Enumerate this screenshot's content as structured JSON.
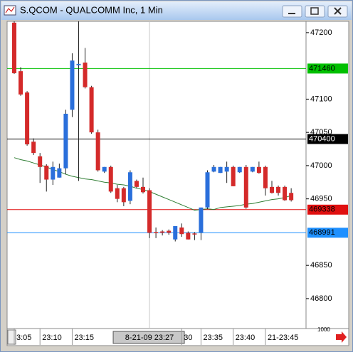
{
  "window": {
    "title": "S.QCOM - QUALCOMM Inc, 1 Min",
    "scale_label": "1000"
  },
  "chart_data": {
    "type": "candlestick",
    "categories": [
      "3:05",
      null,
      null,
      null,
      "23:10",
      null,
      null,
      null,
      null,
      "23:15",
      null,
      null,
      null,
      null,
      null,
      null,
      null,
      null,
      null,
      null,
      null,
      "8-21-09  23:27",
      null,
      null,
      null,
      null,
      "30",
      null,
      null,
      "23:35",
      null,
      null,
      null,
      null,
      "23:40",
      null,
      null,
      null,
      null,
      "21-23:45",
      null,
      null,
      null,
      null
    ],
    "open": [
      47215,
      47142,
      47110,
      47036,
      47014,
      47000,
      46979,
      46982,
      46996,
      47084,
      47151,
      47155,
      47118,
      47050,
      46991,
      46998,
      46966,
      46966,
      46947,
      46977,
      46968,
      46963,
      46900,
      46901,
      46902,
      46889,
      46907,
      46899,
      46898,
      46899,
      46937,
      46991,
      46989,
      46991,
      46998,
      46990,
      46998,
      46991,
      46998,
      46998,
      46968,
      46968,
      46968,
      46959
    ],
    "high": [
      47217,
      47148,
      47112,
      47041,
      47019,
      47002,
      47006,
      47003,
      47084,
      47169,
      47217,
      47177,
      47120,
      47054,
      46998,
      47000,
      46971,
      46968,
      46993,
      46979,
      46982,
      46966,
      46907,
      46903,
      46904,
      46909,
      46913,
      46901,
      46900,
      46937,
      46993,
      47001,
      46998,
      47006,
      47000,
      46998,
      47001,
      46998,
      47006,
      47000,
      46977,
      46970,
      46970,
      46966
    ],
    "low": [
      47138,
      47105,
      47030,
      47016,
      46974,
      46961,
      46971,
      46982,
      46987,
      47073,
      46977,
      47116,
      47048,
      46991,
      46989,
      46959,
      46945,
      46939,
      46942,
      46966,
      46958,
      46891,
      46891,
      46895,
      46896,
      46886,
      46893,
      46889,
      46888,
      46888,
      46935,
      46990,
      46989,
      46974,
      46969,
      46989,
      46935,
      46990,
      46988,
      46955,
      46958,
      46955,
      46947,
      46946
    ],
    "close": [
      47139,
      47107,
      47032,
      47019,
      46998,
      46979,
      46998,
      46996,
      47078,
      47158,
      47153,
      47118,
      47050,
      46993,
      46998,
      46961,
      46950,
      46945,
      46990,
      46968,
      46960,
      46899,
      46899,
      46899,
      46899,
      46909,
      46897,
      46889,
      46897,
      46937,
      46990,
      46998,
      46998,
      46998,
      46969,
      46998,
      46937,
      46998,
      46989,
      46966,
      46959,
      46959,
      46948,
      46948
    ],
    "up_color": "#2a6fdb",
    "down_color": "#d42a2a",
    "ma": {
      "color": "#2e7d32",
      "values": [
        47012,
        47009,
        47007,
        47004,
        47001,
        46998,
        46994,
        46991,
        46987,
        46984,
        46982,
        46980,
        46979,
        46977,
        46975,
        46974,
        46972,
        46971,
        46969,
        46966,
        46964,
        46961,
        46957,
        46953,
        46949,
        46945,
        46941,
        46937,
        46933,
        46934,
        46935,
        46934,
        46937,
        46938,
        46939,
        46940,
        46942,
        46943,
        46945,
        46947,
        46949,
        46950,
        46952,
        46955
      ]
    },
    "levels": [
      {
        "value": 47146,
        "label": "471460",
        "color": "#00c000"
      },
      {
        "value": 47040,
        "label": "470400",
        "color": "#000000"
      },
      {
        "value": 46933.8,
        "label": "469338",
        "color": "#e01010"
      },
      {
        "value": 46899.1,
        "label": "468991",
        "color": "#1e90ff"
      }
    ],
    "ylim": [
      46755,
      47217
    ],
    "yticks": [
      46800,
      46850,
      46950,
      47000,
      47050,
      47100,
      47200
    ]
  }
}
